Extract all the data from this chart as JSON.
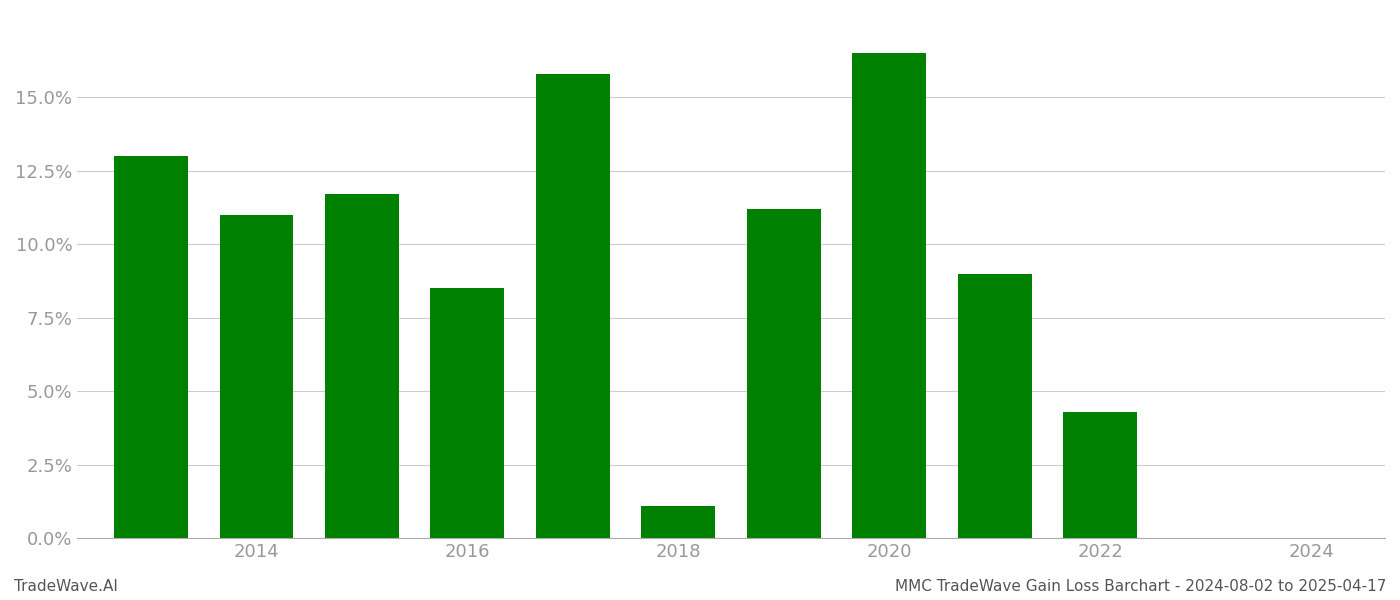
{
  "years": [
    2013,
    2014,
    2015,
    2016,
    2017,
    2018,
    2019,
    2020,
    2021,
    2022,
    2023
  ],
  "values": [
    0.13,
    0.11,
    0.117,
    0.085,
    0.158,
    0.011,
    0.112,
    0.165,
    0.09,
    0.043,
    0.0
  ],
  "bar_color": "#008000",
  "background_color": "#ffffff",
  "grid_color": "#cccccc",
  "ytick_values": [
    0.0,
    0.025,
    0.05,
    0.075,
    0.1,
    0.125,
    0.15
  ],
  "xtick_labels": [
    "2014",
    "2016",
    "2018",
    "2020",
    "2022",
    "2024"
  ],
  "xtick_values": [
    2014,
    2016,
    2018,
    2020,
    2022,
    2024
  ],
  "footer_left": "TradeWave.AI",
  "footer_right": "MMC TradeWave Gain Loss Barchart - 2024-08-02 to 2025-04-17",
  "ylim": [
    0,
    0.178
  ],
  "xlim_left": 2012.3,
  "xlim_right": 2024.7,
  "bar_width": 0.7,
  "spine_color": "#aaaaaa",
  "tick_color": "#999999",
  "tick_labelsize": 13,
  "footer_fontsize": 11,
  "grid_linewidth": 0.8,
  "footer_color": "#555555"
}
